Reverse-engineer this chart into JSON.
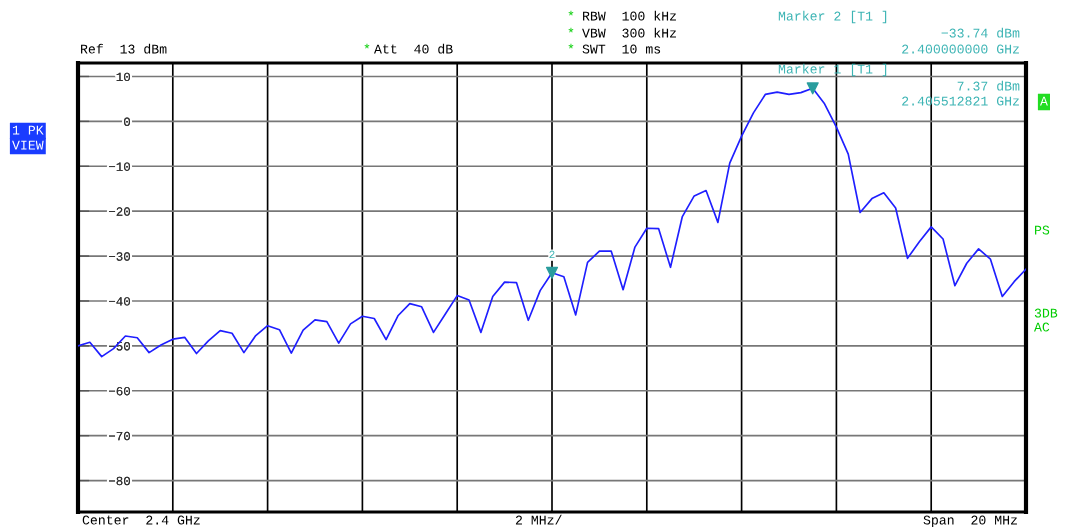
{
  "chart_data": {
    "type": "line",
    "categories": [
      null,
      null,
      null,
      null,
      null,
      null,
      null,
      null,
      null,
      null,
      null,
      null,
      null,
      null,
      null,
      null,
      null,
      null,
      null,
      null,
      null,
      null,
      null,
      null,
      null,
      null,
      null,
      null,
      null,
      null,
      null,
      null,
      null,
      null,
      null,
      null,
      null,
      null,
      null,
      null,
      null,
      null,
      null,
      null,
      null,
      null,
      null,
      null,
      null,
      null,
      null,
      null,
      null,
      null,
      null,
      null,
      null,
      null,
      null,
      null,
      null,
      null,
      null,
      null,
      null,
      null,
      null,
      null,
      null,
      null,
      null,
      null,
      null,
      null,
      null,
      null,
      null,
      null,
      null,
      null,
      null
    ],
    "ylim": [
      -87,
      13
    ],
    "yticks": [
      10,
      0,
      {
        "value": -10,
        "label": "−10"
      },
      {
        "value": -20,
        "label": "−20"
      },
      {
        "value": -30,
        "label": "−30"
      },
      {
        "value": -40,
        "label": "−40"
      },
      {
        "value": -50,
        "label": "−50"
      },
      {
        "value": -60,
        "label": "−60"
      },
      {
        "value": -70,
        "label": "−70"
      },
      {
        "value": -80,
        "label": "−80"
      }
    ],
    "grid": true,
    "tick_labels": "y",
    "series": [
      {
        "color": "#1f1fff",
        "values": [
          -50,
          -49.2,
          -52.4,
          -50.6,
          -47.8,
          -48.2,
          -51.5,
          -49.8,
          -48.5,
          -48.1,
          -51.7,
          -48.9,
          -46.6,
          -47.2,
          -51.5,
          -47.7,
          -45.5,
          -46.4,
          -51.6,
          -46.5,
          -44.2,
          -44.6,
          -49.4,
          -45.1,
          -43.4,
          -43.9,
          -48.6,
          -43.3,
          -40.6,
          -41.3,
          -47,
          -42.9,
          -38.8,
          -39.8,
          -47,
          -39,
          -35.8,
          -35.9,
          -44.3,
          -37.7,
          -33.7,
          -34.6,
          -43.1,
          -31.4,
          -28.9,
          -28.9,
          -37.5,
          -28,
          -23.8,
          -23.9,
          -32.5,
          -21.2,
          -16.6,
          -15.4,
          -22.5,
          -9.3,
          -3.3,
          1.9,
          6,
          6.5,
          6,
          6.4,
          7.37,
          3.9,
          -1.3,
          -7.3,
          -20.3,
          -17.2,
          -15.9,
          -19.3,
          -30.5,
          -26.8,
          -23.5,
          -26.2,
          -36.6,
          -31.6,
          -28.4,
          -30.7,
          -39,
          -35.7,
          -32.9
        ]
      },
      {
        "type": "scatter",
        "color": "#2a9d9d",
        "marker": "triangle",
        "values": [
          null,
          null,
          null,
          null,
          null,
          null,
          null,
          null,
          null,
          null,
          null,
          null,
          null,
          null,
          null,
          null,
          null,
          null,
          null,
          null,
          null,
          null,
          null,
          null,
          null,
          null,
          null,
          null,
          null,
          null,
          null,
          null,
          null,
          null,
          null,
          null,
          null,
          null,
          null,
          null,
          -33.74,
          null,
          null,
          null,
          null,
          null,
          null,
          null,
          null,
          null,
          null,
          null,
          null,
          null,
          null,
          null,
          null,
          null,
          null,
          null,
          null,
          null,
          7.37,
          null,
          null,
          null,
          null,
          null,
          null,
          null,
          null,
          null,
          null,
          null,
          null,
          null,
          null,
          null,
          null,
          null,
          null
        ]
      }
    ],
    "annotations": [
      "Ref  13 dBm",
      "*",
      "Att  40 dB",
      "*",
      "RBW  100 kHz",
      "*",
      "VBW  300 kHz",
      "*",
      "SWT  10 ms",
      "Marker 2 [T1 ]",
      "−33.74 dBm",
      "2.400000000 GHz",
      "Marker 1 [T1 ]",
      "7.37 dBm",
      "2.405512821 GHz",
      "1 PK",
      "VIEW",
      "A",
      "PS",
      "3DB",
      "AC",
      "Center  2.4 GHz",
      "2 MHz/",
      "Span  20 MHz",
      {
        "text": "2",
        "y": -33.74
      }
    ]
  }
}
